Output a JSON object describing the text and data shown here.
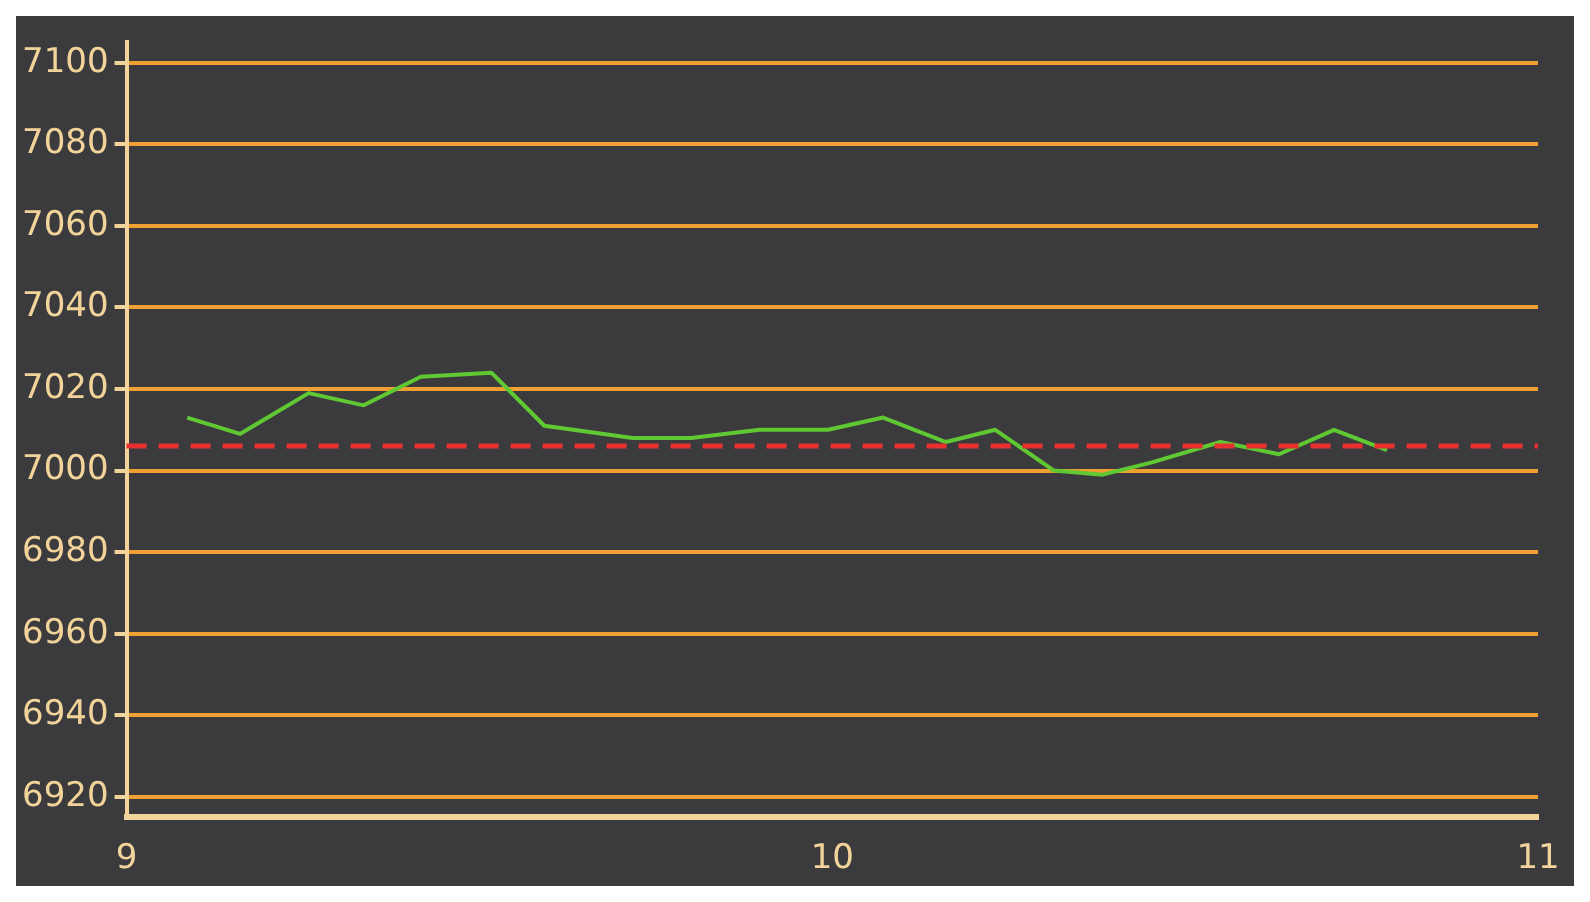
{
  "chart_data": {
    "type": "line",
    "x": [
      9.086,
      9.161,
      9.258,
      9.336,
      9.417,
      9.517,
      9.592,
      9.717,
      9.8,
      9.897,
      9.994,
      10.072,
      10.161,
      10.231,
      10.314,
      10.383,
      10.453,
      10.55,
      10.633,
      10.711,
      10.786
    ],
    "series": [
      {
        "color": "#5fc832",
        "values": [
          7013,
          7009,
          7019,
          7016,
          7023,
          7024,
          7011,
          7008,
          7008,
          7010,
          7010,
          7013,
          7007,
          7010,
          7000,
          6999,
          7002,
          7007,
          7004,
          7010,
          7005
        ]
      }
    ],
    "xlim": [
      9,
      11
    ],
    "xticks": [
      9,
      10,
      11
    ],
    "ylim": [
      6915,
      7105
    ],
    "yticks": [
      6920,
      6940,
      6960,
      6980,
      7000,
      7020,
      7040,
      7060,
      7080,
      7100
    ],
    "ref_lines": [
      {
        "axis": "y",
        "value": 7006,
        "color": "#e83030",
        "line_style": "dashed"
      }
    ],
    "grid": "y",
    "legend": false,
    "marker": "none",
    "line_style": "solid"
  }
}
